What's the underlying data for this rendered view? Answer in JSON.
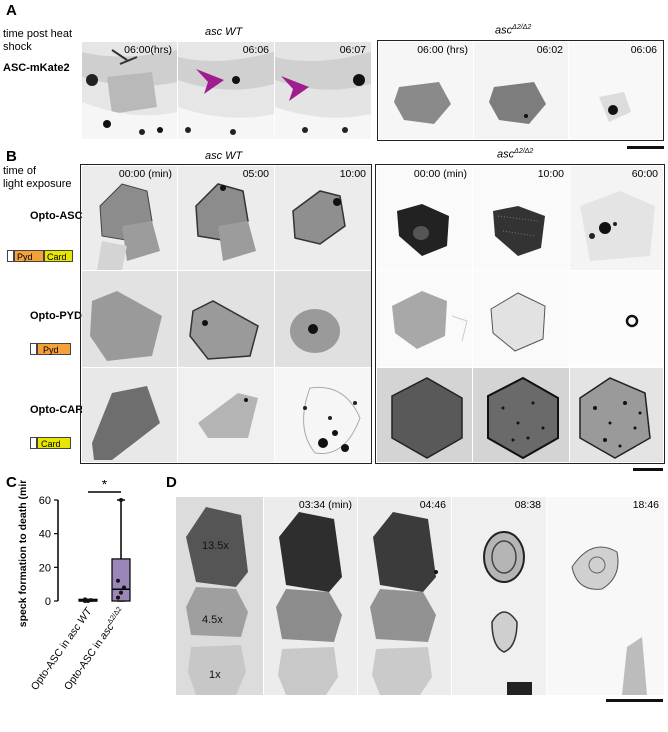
{
  "panel_a": {
    "letter": "A",
    "row_label_line1": "time post heat",
    "row_label_line2": "shock",
    "marker_label": "ASC-mKate2",
    "group_wt": "asc WT",
    "group_mut": "asc",
    "group_mut_sup": "Δ2/Δ2",
    "wt_times": [
      "06:00(hrs)",
      "06:06",
      "06:07"
    ],
    "mut_times": [
      "06:00 (hrs)",
      "06:02",
      "06:06"
    ]
  },
  "panel_b": {
    "letter": "B",
    "row_label_line1": "time of",
    "row_label_line2": "light exposure",
    "group_wt": "asc WT",
    "group_mut": "asc",
    "group_mut_sup": "Δ2/Δ2",
    "wt_times": [
      "00:00 (min)",
      "05:00",
      "10:00"
    ],
    "mut_times": [
      "00:00 (min)",
      "10:00",
      "60:00"
    ],
    "rows": [
      {
        "label": "Opto-ASC",
        "domains": [
          "Pyd",
          "Card"
        ]
      },
      {
        "label": "Opto-PYD",
        "domains": [
          "Pyd"
        ]
      },
      {
        "label": "Opto-CARD",
        "domains": [
          "Card"
        ]
      }
    ],
    "colors": {
      "pyd": "#f4a13a",
      "card": "#e6e600"
    }
  },
  "panel_c": {
    "letter": "C",
    "ylabel": "speck formation to death (min)",
    "significance": "*",
    "chart_data": {
      "type": "box",
      "title": "",
      "xlabel": "",
      "ylabel": "speck formation to death (min)",
      "ylim": [
        0,
        60
      ],
      "yticks": [
        0,
        20,
        40,
        60
      ],
      "categories": [
        "Opto-ASC in asc WT",
        "Opto-ASC in asc Δ2/Δ2"
      ],
      "category_parts": [
        {
          "prefix": "Opto-ASC in ",
          "ital": "asc WT",
          "sup": ""
        },
        {
          "prefix": "Opto-ASC in ",
          "ital": "asc",
          "sup": "Δ2/Δ2"
        }
      ],
      "boxes": [
        {
          "min": 0,
          "q1": 0,
          "median": 0,
          "q3": 1,
          "max": 1,
          "points": [
            0,
            0,
            0.5,
            1,
            0.3
          ]
        },
        {
          "min": 0,
          "q1": 0,
          "median": 7,
          "q3": 25,
          "max": 60,
          "points": [
            2,
            5,
            8,
            12,
            60
          ]
        }
      ],
      "colors": [
        "#444444",
        "#9b86b8"
      ]
    }
  },
  "panel_d": {
    "letter": "D",
    "levels": [
      "13.5x",
      "4.5x",
      "1x"
    ],
    "times": [
      "03:34 (min)",
      "04:46",
      "08:38",
      "18:46"
    ]
  }
}
